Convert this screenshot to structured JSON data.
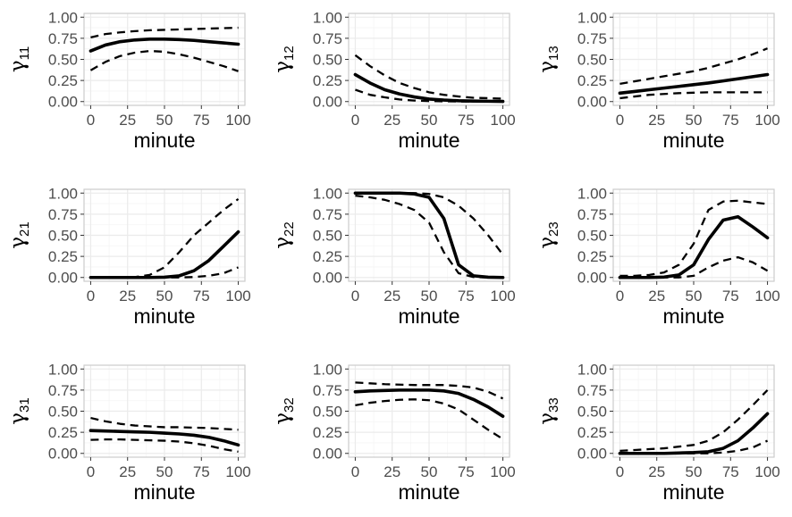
{
  "chart_data": {
    "type": "line",
    "layout": "3x3 facet grid",
    "grid": true,
    "xlabel": "minute",
    "xlim": [
      0,
      100
    ],
    "ylim": [
      0,
      1
    ],
    "xticks": [
      "0",
      "25",
      "50",
      "75",
      "100"
    ],
    "yticks": [
      "0.00",
      "0.25",
      "0.50",
      "0.75",
      "1.00"
    ],
    "line_styles": {
      "estimate": "solid",
      "bounds": "dashed"
    },
    "colors": {
      "line": "#000000",
      "panel_border": "#cccccc",
      "grid_major": "#ebebeb",
      "grid_minor": "#f5f5f5",
      "tick_text": "#4d4d4d"
    },
    "x": [
      0,
      10,
      20,
      30,
      40,
      50,
      60,
      70,
      80,
      90,
      100
    ],
    "panels": [
      {
        "ylabel_symbol": "γ",
        "ylabel_sub": "11",
        "estimate": [
          0.6,
          0.67,
          0.71,
          0.73,
          0.74,
          0.74,
          0.735,
          0.725,
          0.71,
          0.695,
          0.68
        ],
        "upper": [
          0.76,
          0.8,
          0.82,
          0.835,
          0.845,
          0.85,
          0.855,
          0.86,
          0.865,
          0.87,
          0.875
        ],
        "lower": [
          0.37,
          0.47,
          0.54,
          0.58,
          0.6,
          0.59,
          0.56,
          0.52,
          0.47,
          0.42,
          0.36
        ]
      },
      {
        "ylabel_symbol": "γ",
        "ylabel_sub": "12",
        "estimate": [
          0.32,
          0.22,
          0.14,
          0.09,
          0.055,
          0.03,
          0.018,
          0.01,
          0.006,
          0.004,
          0.002
        ],
        "upper": [
          0.55,
          0.42,
          0.31,
          0.22,
          0.16,
          0.11,
          0.08,
          0.06,
          0.045,
          0.04,
          0.035
        ],
        "lower": [
          0.14,
          0.08,
          0.05,
          0.025,
          0.012,
          0.006,
          0.003,
          0.001,
          0.0,
          0.0,
          0.0
        ]
      },
      {
        "ylabel_symbol": "γ",
        "ylabel_sub": "13",
        "estimate": [
          0.1,
          0.12,
          0.14,
          0.16,
          0.18,
          0.2,
          0.22,
          0.245,
          0.27,
          0.295,
          0.32
        ],
        "upper": [
          0.21,
          0.24,
          0.27,
          0.3,
          0.33,
          0.36,
          0.4,
          0.45,
          0.5,
          0.56,
          0.63
        ],
        "lower": [
          0.04,
          0.06,
          0.08,
          0.09,
          0.1,
          0.105,
          0.11,
          0.11,
          0.11,
          0.11,
          0.11
        ]
      },
      {
        "ylabel_symbol": "γ",
        "ylabel_sub": "21",
        "estimate": [
          0.0,
          0.0,
          0.0,
          0.0,
          0.0,
          0.003,
          0.02,
          0.08,
          0.2,
          0.37,
          0.54
        ],
        "upper": [
          0.0,
          0.0,
          0.0,
          0.005,
          0.03,
          0.12,
          0.3,
          0.5,
          0.65,
          0.8,
          0.93
        ],
        "lower": [
          0.0,
          0.0,
          0.0,
          0.0,
          0.0,
          0.0,
          0.0,
          0.005,
          0.02,
          0.05,
          0.12
        ]
      },
      {
        "ylabel_symbol": "γ",
        "ylabel_sub": "22",
        "estimate": [
          1.0,
          1.0,
          1.0,
          1.0,
          0.99,
          0.95,
          0.7,
          0.15,
          0.02,
          0.003,
          0.0
        ],
        "upper": [
          1.0,
          1.0,
          1.0,
          1.0,
          1.0,
          0.99,
          0.95,
          0.85,
          0.7,
          0.5,
          0.27
        ],
        "lower": [
          0.97,
          0.95,
          0.92,
          0.87,
          0.8,
          0.65,
          0.3,
          0.05,
          0.005,
          0.0,
          0.0
        ]
      },
      {
        "ylabel_symbol": "γ",
        "ylabel_sub": "23",
        "estimate": [
          0.0,
          0.0,
          0.0,
          0.005,
          0.03,
          0.15,
          0.45,
          0.68,
          0.72,
          0.6,
          0.47
        ],
        "upper": [
          0.02,
          0.02,
          0.03,
          0.06,
          0.15,
          0.4,
          0.8,
          0.9,
          0.91,
          0.89,
          0.87
        ],
        "lower": [
          0.0,
          0.0,
          0.0,
          0.0,
          0.0,
          0.02,
          0.12,
          0.2,
          0.24,
          0.18,
          0.08
        ]
      },
      {
        "ylabel_symbol": "γ",
        "ylabel_sub": "31",
        "estimate": [
          0.27,
          0.265,
          0.26,
          0.255,
          0.25,
          0.24,
          0.23,
          0.215,
          0.19,
          0.15,
          0.1
        ],
        "upper": [
          0.42,
          0.38,
          0.35,
          0.33,
          0.32,
          0.31,
          0.31,
          0.305,
          0.3,
          0.29,
          0.28
        ],
        "lower": [
          0.16,
          0.165,
          0.165,
          0.16,
          0.155,
          0.15,
          0.14,
          0.12,
          0.09,
          0.05,
          0.02
        ]
      },
      {
        "ylabel_symbol": "γ",
        "ylabel_sub": "32",
        "estimate": [
          0.73,
          0.74,
          0.745,
          0.75,
          0.75,
          0.75,
          0.74,
          0.71,
          0.64,
          0.55,
          0.44
        ],
        "upper": [
          0.84,
          0.83,
          0.82,
          0.815,
          0.81,
          0.81,
          0.81,
          0.8,
          0.78,
          0.73,
          0.65
        ],
        "lower": [
          0.57,
          0.6,
          0.62,
          0.635,
          0.64,
          0.63,
          0.59,
          0.52,
          0.4,
          0.28,
          0.17
        ]
      },
      {
        "ylabel_symbol": "γ",
        "ylabel_sub": "33",
        "estimate": [
          0.0,
          0.0,
          0.0,
          0.0,
          0.005,
          0.01,
          0.02,
          0.06,
          0.15,
          0.3,
          0.47
        ],
        "upper": [
          0.03,
          0.04,
          0.05,
          0.06,
          0.08,
          0.1,
          0.15,
          0.25,
          0.4,
          0.57,
          0.75
        ],
        "lower": [
          0.0,
          0.0,
          0.0,
          0.0,
          0.0,
          0.0,
          0.0,
          0.01,
          0.03,
          0.07,
          0.15
        ]
      }
    ]
  }
}
